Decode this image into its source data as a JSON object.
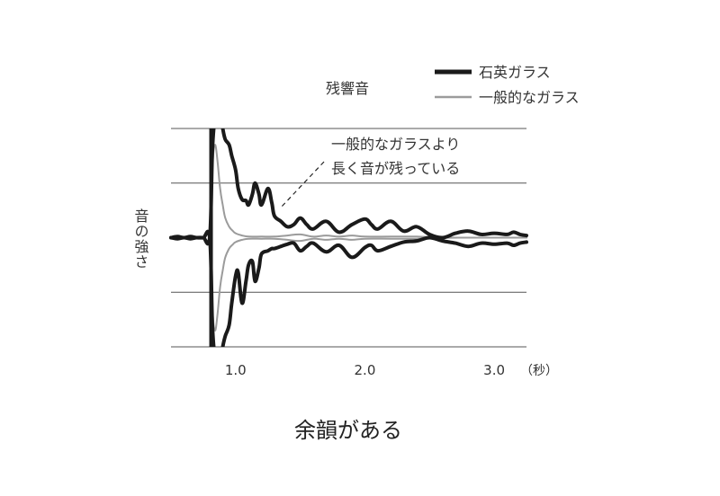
{
  "chart_data": {
    "type": "line",
    "title": "残響音",
    "ylabel": "音の強さ",
    "x_unit": "（秒）",
    "xlim": [
      0.5,
      3.25
    ],
    "ylim": [
      -1,
      1
    ],
    "xticks": [
      {
        "value": 1.0,
        "label": "1.0"
      },
      {
        "value": 2.0,
        "label": "2.0"
      },
      {
        "value": 3.0,
        "label": "3.0"
      }
    ],
    "y_gridlines": [
      -1,
      -0.5,
      0.5,
      1
    ],
    "legend_position": "top-right",
    "series": [
      {
        "name": "石英ガラス",
        "color": "#1a1a1a",
        "x": [
          0.5,
          0.55,
          0.6,
          0.65,
          0.7,
          0.75,
          0.8,
          0.82,
          0.84,
          0.86,
          0.88,
          0.9,
          0.92,
          0.95,
          0.97,
          1.0,
          1.02,
          1.05,
          1.08,
          1.1,
          1.13,
          1.15,
          1.18,
          1.2,
          1.25,
          1.28,
          1.3,
          1.35,
          1.4,
          1.45,
          1.5,
          1.55,
          1.6,
          1.7,
          1.8,
          1.9,
          2.0,
          2.05,
          2.1,
          2.2,
          2.3,
          2.4,
          2.5,
          2.6,
          2.7,
          2.8,
          2.9,
          3.0,
          3.1,
          3.15,
          3.2,
          3.25
        ],
        "upper": [
          0.0,
          0.01,
          0.0,
          0.01,
          0.0,
          0.0,
          0.01,
          0.8,
          1.1,
          1.2,
          1.15,
          1.0,
          0.9,
          0.85,
          0.75,
          0.62,
          0.45,
          0.35,
          0.34,
          0.3,
          0.4,
          0.5,
          0.4,
          0.3,
          0.45,
          0.32,
          0.2,
          0.15,
          0.1,
          0.12,
          0.18,
          0.12,
          0.08,
          0.15,
          0.05,
          0.12,
          0.17,
          0.12,
          0.08,
          0.15,
          0.06,
          0.1,
          0.03,
          0.0,
          0.04,
          0.06,
          0.03,
          0.04,
          0.03,
          0.05,
          0.03,
          0.02
        ],
        "lower": [
          0.0,
          -0.01,
          0.0,
          -0.01,
          0.0,
          0.0,
          -0.01,
          -0.8,
          -1.1,
          -1.2,
          -1.15,
          -1.0,
          -0.9,
          -0.8,
          -0.6,
          -0.35,
          -0.32,
          -0.6,
          -0.4,
          -0.25,
          -0.22,
          -0.4,
          -0.28,
          -0.15,
          -0.12,
          -0.1,
          -0.1,
          -0.08,
          -0.06,
          -0.05,
          -0.12,
          -0.08,
          -0.05,
          -0.13,
          -0.07,
          -0.18,
          -0.09,
          -0.07,
          -0.12,
          -0.08,
          -0.04,
          -0.03,
          0.0,
          -0.03,
          -0.05,
          -0.08,
          -0.05,
          -0.06,
          -0.05,
          -0.07,
          -0.05,
          -0.04
        ]
      },
      {
        "name": "一般的なガラス",
        "color": "#9b9b9b",
        "x": [
          0.5,
          0.55,
          0.6,
          0.65,
          0.7,
          0.75,
          0.8,
          0.82,
          0.84,
          0.86,
          0.88,
          0.9,
          0.92,
          0.95,
          0.98,
          1.0,
          1.05,
          1.1,
          1.2,
          1.3,
          1.4,
          1.5,
          1.6,
          1.7,
          1.8,
          1.9,
          2.0,
          2.2,
          2.4,
          2.6,
          2.8,
          3.0,
          3.25
        ],
        "upper": [
          0.0,
          0.01,
          0.0,
          0.01,
          0.0,
          0.0,
          0.01,
          0.65,
          0.85,
          0.7,
          0.45,
          0.3,
          0.18,
          0.1,
          0.06,
          0.04,
          0.02,
          0.01,
          0.01,
          0.01,
          0.02,
          0.03,
          0.01,
          0.02,
          0.01,
          0.02,
          0.01,
          0.01,
          0.01,
          0.0,
          0.0,
          0.0,
          0.0
        ],
        "lower": [
          0.0,
          -0.01,
          0.0,
          -0.01,
          0.0,
          0.0,
          -0.01,
          -0.65,
          -0.85,
          -0.7,
          -0.45,
          -0.3,
          -0.18,
          -0.1,
          -0.06,
          -0.04,
          -0.02,
          -0.01,
          -0.01,
          -0.01,
          -0.02,
          -0.03,
          -0.01,
          -0.02,
          -0.01,
          -0.02,
          -0.01,
          -0.01,
          -0.01,
          0.0,
          0.0,
          0.0,
          0.0
        ]
      }
    ],
    "annotation": {
      "lines": [
        "一般的なガラスより",
        "長く音が残っている"
      ],
      "point_to": {
        "x": 1.33,
        "y": 0.28
      }
    }
  },
  "caption": "余韻がある"
}
